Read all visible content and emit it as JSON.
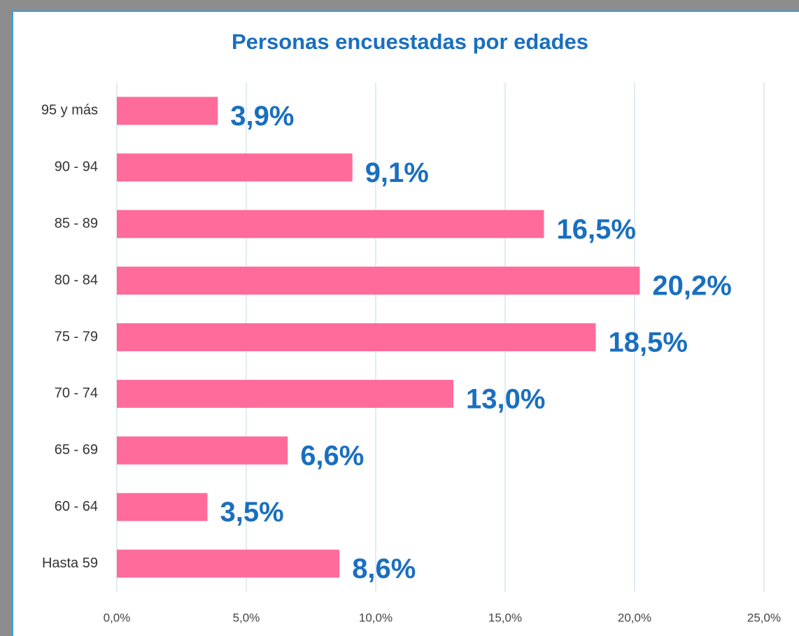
{
  "chart_data": {
    "type": "bar",
    "orientation": "horizontal",
    "title": "Personas encuestadas por edades",
    "categories": [
      "95 y más",
      "90 - 94",
      "85 - 89",
      "80 - 84",
      "75 - 79",
      "70 - 74",
      "65 - 69",
      "60 - 64",
      "Hasta 59"
    ],
    "values": [
      3.9,
      9.1,
      16.5,
      20.2,
      18.5,
      13.0,
      6.6,
      3.5,
      8.6
    ],
    "value_labels": [
      "3,9%",
      "9,1%",
      "16,5%",
      "20,2%",
      "18,5%",
      "13,0%",
      "6,6%",
      "3,5%",
      "8,6%"
    ],
    "color": "#ff6b9a",
    "xlim": [
      0,
      25
    ],
    "xticks": [
      {
        "value": 0,
        "label": "0,0%"
      },
      {
        "value": 5,
        "label": "5,0%"
      },
      {
        "value": 10,
        "label": "10,0%"
      },
      {
        "value": 15,
        "label": "15,0%"
      },
      {
        "value": 20,
        "label": "20,0%"
      },
      {
        "value": 25,
        "label": "25,0%"
      }
    ],
    "grid": true
  }
}
